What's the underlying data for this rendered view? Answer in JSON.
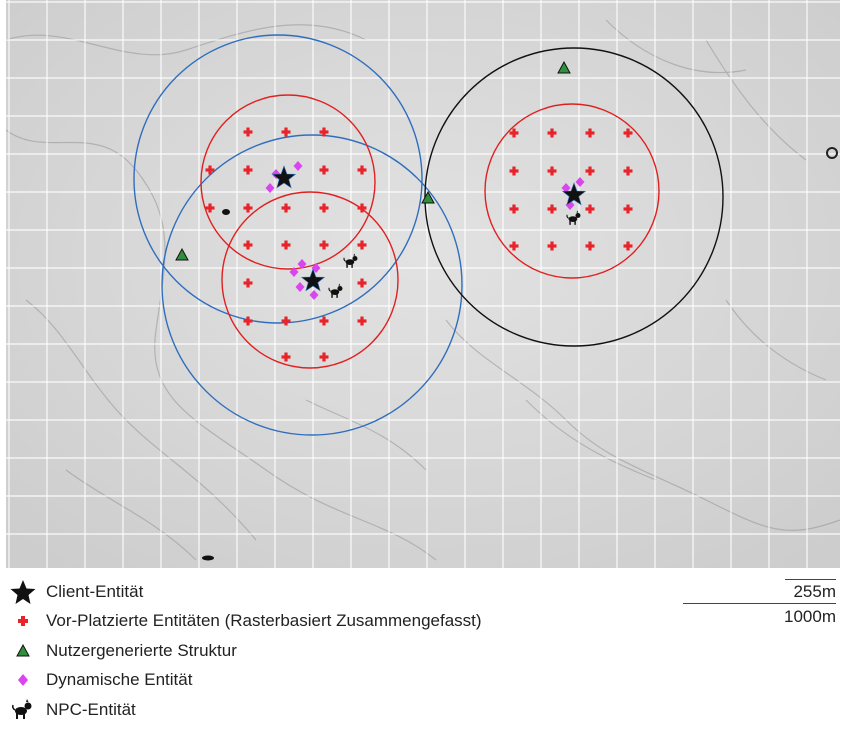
{
  "legend": {
    "client": "Client-Entität",
    "preplaced": "Vor-Platzierte Entitäten (Rasterbasiert Zusammengefasst)",
    "structure": "Nutzergenerierte Struktur",
    "dynamic": "Dynamische Entität",
    "npc": "NPC-Entität"
  },
  "scale": {
    "small": "255m",
    "large": "1000m"
  },
  "colors": {
    "client": "#111111",
    "preplaced": "#e8232a",
    "structure": "#2f8f3c",
    "dynamic": "#d946ef",
    "npc": "#111111",
    "inner_ring": "#e02020",
    "outer_ring_client": "#2f6ebd",
    "outer_ring_other": "#111111",
    "grid": "#ffffff"
  },
  "icons": {
    "client": "star-icon",
    "preplaced": "plus-icon",
    "structure": "triangle-icon",
    "dynamic": "diamond-icon",
    "npc": "dog-silhouette-icon"
  }
}
